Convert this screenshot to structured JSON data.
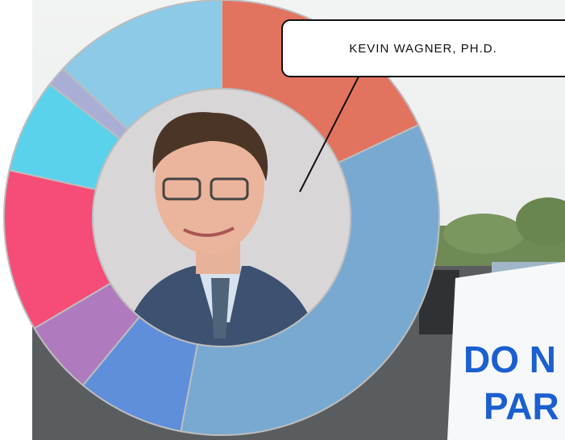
{
  "chart_data": {
    "type": "donut",
    "annotation": "KEVIN WAGNER, PH.D.",
    "categories": [
      null,
      null,
      null,
      null,
      null,
      null,
      null,
      null
    ],
    "values": [
      18,
      35,
      8,
      5.5,
      12,
      7,
      1.5,
      13
    ],
    "colors": [
      "#e2735f",
      "#78a9d1",
      "#5f8fdb",
      "#b07abf",
      "#f64d78",
      "#5bd2ec",
      "#a9aed6",
      "#8ccae8"
    ]
  },
  "photo": {
    "sign": [
      "DO N",
      "PAR"
    ]
  }
}
